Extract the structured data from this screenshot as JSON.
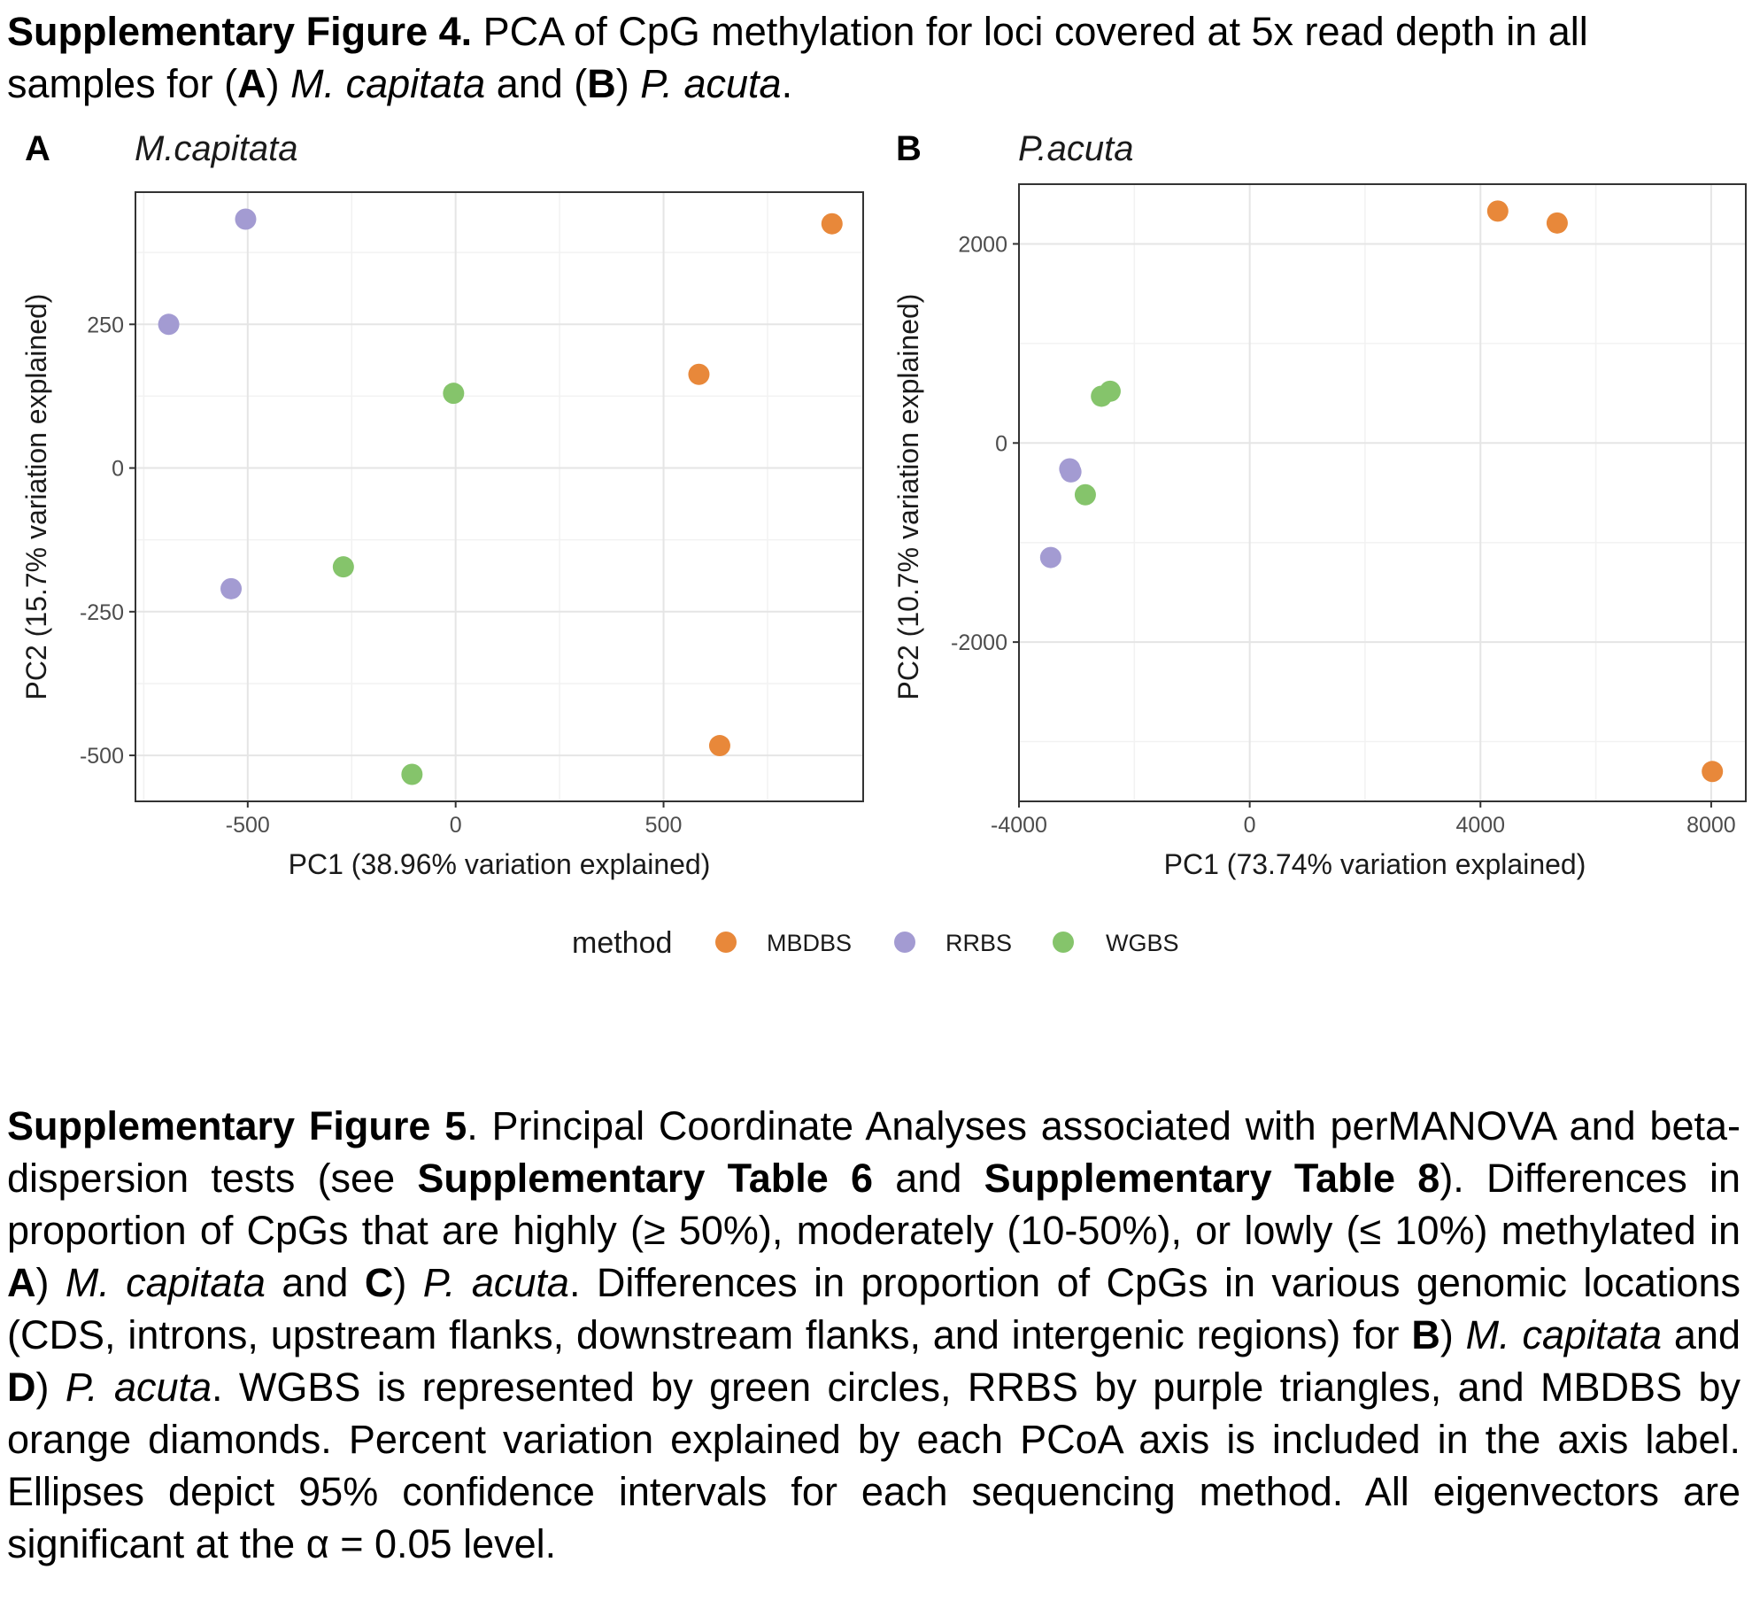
{
  "caption4": {
    "label": "Supplementary Figure 4.",
    "t1": " PCA of CpG methylation for loci covered at 5x read depth in all samples for (",
    "A": "A",
    "t2": ") ",
    "sp1": "M. capitata",
    "t3": " and (",
    "B": "B",
    "t4": ") ",
    "sp2": "P. acuta",
    "t5": "."
  },
  "caption5": {
    "label": "Supplementary Figure 5",
    "t1": ". Principal Coordinate Analyses associated with perMANOVA and beta-dispersion tests (see ",
    "ref1": "Supplementary Table 6",
    "t2": " and ",
    "ref2": "Supplementary Table 8",
    "t3": "). Differences in proportion of CpGs that are highly (≥ 50%), moderately (10-50%), or lowly (≤ 10%) methylated in ",
    "A": "A",
    "t4": ") ",
    "sp1": "M. capitata",
    "t5": " and ",
    "C": "C",
    "t6": ") ",
    "sp2": "P. acuta",
    "t7": ". Differences in proportion of CpGs in various genomic locations (CDS, introns, upstream flanks, downstream flanks, and intergenic regions) for ",
    "B": "B",
    "t8": ") ",
    "sp3": "M. capitata",
    "t9": " and ",
    "D": "D",
    "t10": ") ",
    "sp4": "P. acuta",
    "t11": ". WGBS is represented by green circles, RRBS by purple triangles, and MBDBS by orange diamonds. Percent variation explained by each PCoA axis is included in the axis label. Ellipses depict 95% confidence intervals for each sequencing method. All eigenvectors are significant at the α = 0.05 level."
  },
  "legend": {
    "title": "method",
    "entries": [
      {
        "label": "MBDBS",
        "color": "#E8883A"
      },
      {
        "label": "RRBS",
        "color": "#A39BD2"
      },
      {
        "label": "WGBS",
        "color": "#85C46B"
      }
    ]
  },
  "chart_data": [
    {
      "type": "scatter",
      "panel": "A",
      "title": "M.capitata",
      "xlabel": "PC1 (38.96% variation explained)",
      "ylabel": "PC2 (15.7% variation explained)",
      "xlim": [
        -770,
        980
      ],
      "ylim": [
        -580,
        480
      ],
      "xticks": [
        -500,
        0,
        500
      ],
      "yticks": [
        -500,
        -250,
        0,
        250
      ],
      "grid": true,
      "series": [
        {
          "name": "MBDBS",
          "points": [
            [
              905,
              425
            ],
            [
              585,
              163
            ],
            [
              635,
              -483
            ]
          ]
        },
        {
          "name": "RRBS",
          "points": [
            [
              -505,
              433
            ],
            [
              -690,
              250
            ],
            [
              -540,
              -210
            ]
          ]
        },
        {
          "name": "WGBS",
          "points": [
            [
              -5,
              130
            ],
            [
              -270,
              -172
            ],
            [
              -105,
              -533
            ]
          ]
        }
      ]
    },
    {
      "type": "scatter",
      "panel": "B",
      "title": "P.acuta",
      "xlabel": "PC1 (73.74% variation explained)",
      "ylabel": "PC2 (10.7% variation explained)",
      "xlim": [
        -4000,
        8600
      ],
      "ylim": [
        -3600,
        2600
      ],
      "xticks": [
        -4000,
        0,
        4000,
        8000
      ],
      "yticks": [
        -2000,
        0,
        2000
      ],
      "grid": true,
      "series": [
        {
          "name": "MBDBS",
          "points": [
            [
              4300,
              2330
            ],
            [
              5330,
              2210
            ],
            [
              8020,
              -3300
            ]
          ]
        },
        {
          "name": "RRBS",
          "points": [
            [
              -3120,
              -260
            ],
            [
              -3100,
              -290
            ],
            [
              -3450,
              -1150
            ]
          ]
        },
        {
          "name": "WGBS",
          "points": [
            [
              -2570,
              470
            ],
            [
              -2420,
              520
            ],
            [
              -2850,
              -520
            ]
          ]
        }
      ]
    }
  ]
}
